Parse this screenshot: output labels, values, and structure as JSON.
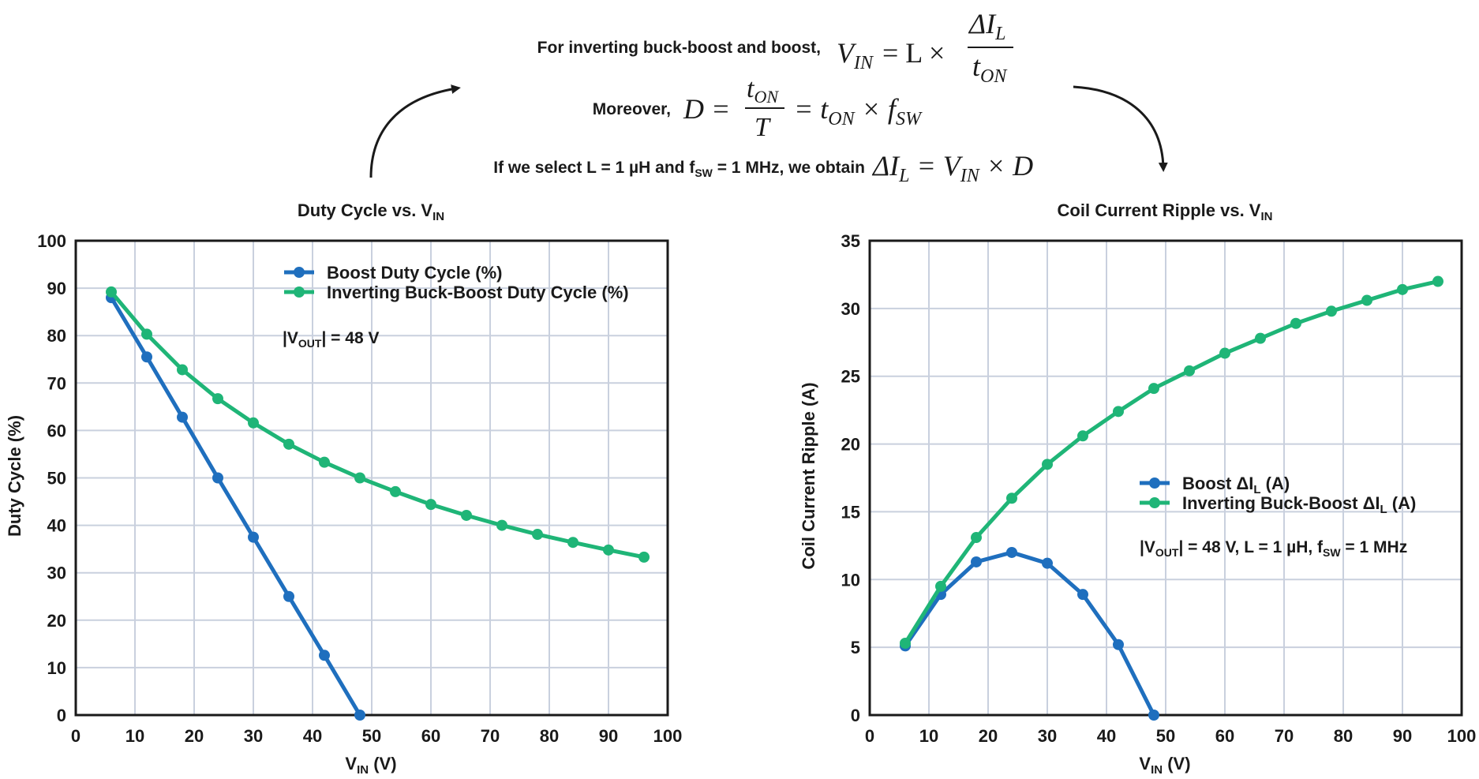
{
  "header": {
    "line1_text": "For inverting buck-boost and boost,",
    "line2_text": "Moreover,",
    "line3_text_a": "If we select L = 1 µH and f",
    "line3_text_sub": "SW",
    "line3_text_b": " = 1 MHz, we obtain",
    "eq1": {
      "lhs": "V",
      "lhs_sub": "IN",
      "mid": "= L ×",
      "num": "ΔI",
      "num_sub": "L",
      "den": "t",
      "den_sub": "ON"
    },
    "eq2": {
      "lhs": "D =",
      "num": "t",
      "num_sub": "ON",
      "den": "T",
      "rhs_a": "= t",
      "rhs_a_sub": "ON",
      "rhs_b": " × f",
      "rhs_b_sub": "SW"
    },
    "eq3": {
      "a": "ΔI",
      "a_sub": "L",
      "b": " = V",
      "b_sub": "IN",
      "c": " × D"
    }
  },
  "chart_data": [
    {
      "type": "line",
      "title": "Duty Cycle vs. V",
      "title_sub": "IN",
      "xlabel": "V",
      "xlabel_sub": "IN",
      "xlabel_suffix": " (V)",
      "ylabel": "Duty Cycle (%)",
      "xlim": [
        0,
        100
      ],
      "ylim": [
        0,
        100
      ],
      "xticks": [
        0,
        10,
        20,
        30,
        40,
        50,
        60,
        70,
        80,
        90,
        100
      ],
      "yticks": [
        0,
        10,
        20,
        30,
        40,
        50,
        60,
        70,
        80,
        90,
        100
      ],
      "grid": true,
      "legend_position": "top-right",
      "annotation": {
        "a": "|V",
        "sub": "OUT",
        "b": "| = 48 V"
      },
      "series": [
        {
          "name": "Boost Duty Cycle (%)",
          "color": "#1f6fbe",
          "x": [
            6,
            12,
            18,
            24,
            30,
            36,
            42,
            48
          ],
          "y": [
            88,
            75.5,
            62.8,
            50,
            37.5,
            25,
            12.6,
            0
          ]
        },
        {
          "name": "Inverting Buck-Boost Duty Cycle (%)",
          "color": "#1fb577",
          "x": [
            6,
            12,
            18,
            24,
            30,
            36,
            42,
            48,
            54,
            60,
            66,
            72,
            78,
            84,
            90,
            96
          ],
          "y": [
            89.2,
            80.3,
            72.8,
            66.7,
            61.6,
            57.1,
            53.3,
            50,
            47.1,
            44.4,
            42.1,
            40,
            38.1,
            36.4,
            34.8,
            33.3
          ]
        }
      ]
    },
    {
      "type": "line",
      "title": "Coil Current Ripple vs. V",
      "title_sub": "IN",
      "xlabel": "V",
      "xlabel_sub": "IN",
      "xlabel_suffix": " (V)",
      "ylabel": "Coil Current Ripple (A)",
      "xlim": [
        0,
        100
      ],
      "ylim": [
        0,
        35
      ],
      "xticks": [
        0,
        10,
        20,
        30,
        40,
        50,
        60,
        70,
        80,
        90,
        100
      ],
      "yticks": [
        0,
        5,
        10,
        15,
        20,
        25,
        30,
        35
      ],
      "grid": true,
      "legend_position": "center-right",
      "annotation": {
        "a": "|V",
        "sub": "OUT",
        "b": "| = 48 V, L = 1 µH, f",
        "sub2": "SW",
        "c": " = 1 MHz"
      },
      "series": [
        {
          "name": "Boost ΔI",
          "name_sub": "L",
          "name_suffix": " (A)",
          "color": "#1f6fbe",
          "x": [
            6,
            12,
            18,
            24,
            30,
            36,
            42,
            48
          ],
          "y": [
            5.1,
            8.9,
            11.3,
            12,
            11.2,
            8.9,
            5.2,
            0
          ]
        },
        {
          "name": "Inverting Buck-Boost ΔI",
          "name_sub": "L",
          "name_suffix": " (A)",
          "color": "#1fb577",
          "x": [
            6,
            12,
            18,
            24,
            30,
            36,
            42,
            48,
            54,
            60,
            66,
            72,
            78,
            84,
            90,
            96
          ],
          "y": [
            5.3,
            9.5,
            13.1,
            16,
            18.5,
            20.6,
            22.4,
            24.1,
            25.4,
            26.7,
            27.8,
            28.9,
            29.8,
            30.6,
            31.4,
            32
          ]
        }
      ]
    }
  ]
}
